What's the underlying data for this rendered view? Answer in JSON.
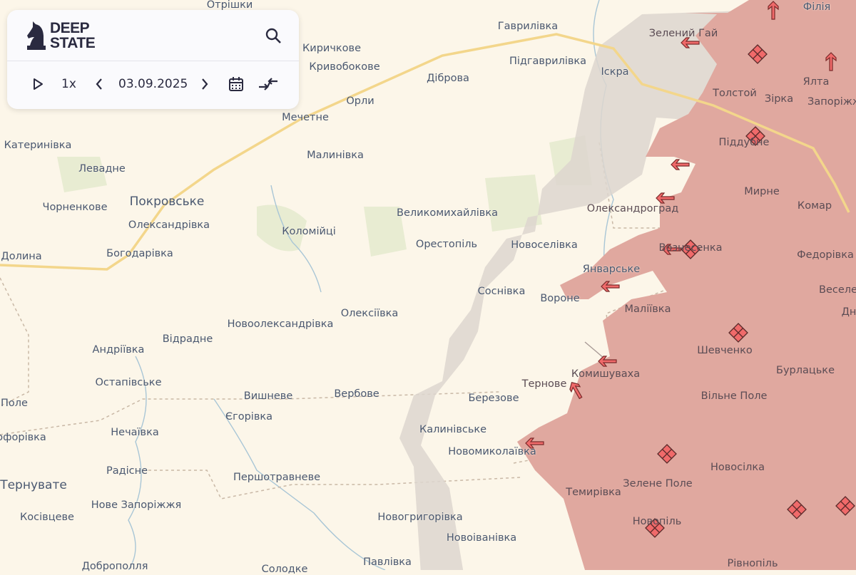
{
  "app": {
    "logo_text": "DEEP\nSTATE",
    "logo_icon": "knight-chess-icon"
  },
  "controls": {
    "play_icon": "play-icon",
    "speed": "1x",
    "prev_icon": "chevron-left-icon",
    "date": "03.09.2025",
    "next_icon": "chevron-right-icon",
    "calendar_icon": "calendar-icon",
    "compare_icon": "compare-arrows-icon",
    "search_icon": "search-icon"
  },
  "colors": {
    "background": "#fcf6e9",
    "occupied": "#e0a89f",
    "gray_zone": "#d9d3cc",
    "road": "#f3d68b",
    "river": "#a9c6d6",
    "marker": "#f06a6a"
  },
  "map": {
    "labels": [
      "Отрішки",
      "Гаврилівка",
      "Зелений Гай",
      "Філія",
      "Киричкове",
      "Кривобокове",
      "Підгаврилівка",
      "Діброва",
      "Іскра",
      "Ялта",
      "Толстой",
      "Зірка",
      "Запоріжж",
      "Орли",
      "Мечетне",
      "Катеринівка",
      "Малинівка",
      "Піддубне",
      "Левадне",
      "Мирне",
      "Покровське",
      "Чорненкове",
      "Великомихайлівка",
      "Олександроград",
      "Комар",
      "Олександрівка",
      "Коломійці",
      "Орестопіль",
      "Новоселівка",
      "Вознесенка",
      "Федорівка",
      "Долина",
      "Богодарівка",
      "Январське",
      "Веселе",
      "Соснівка",
      "Вороне",
      "Дні",
      "Маліївка",
      "Олексіївка",
      "Новоолександрівка",
      "Відрадне",
      "Шевченко",
      "Андріївка",
      "Бурлацьке",
      "Остапівське",
      "Тернове",
      "Комишуваха",
      "Вишневе",
      "Вербове",
      "Березове",
      "Вільне Поле",
      "Поле",
      "Єгорівка",
      "Калинівське",
      "Нечаївка",
      "офорівка",
      "Новомиколаївка",
      "Радісне",
      "Новосілка",
      "Тернувате",
      "Першотравневе",
      "Зелене Поле",
      "Темирівка",
      "Нове Запоріжжя",
      "Косівцеве",
      "Новогригорівка",
      "Новопіль",
      "Новоіванівка",
      "Павлівка",
      "Доброполля",
      "Солодке",
      "Рівнопіль"
    ],
    "attack_arrow_icon": "arrow-icon",
    "position_marker_icon": "diamond-grid-icon"
  }
}
